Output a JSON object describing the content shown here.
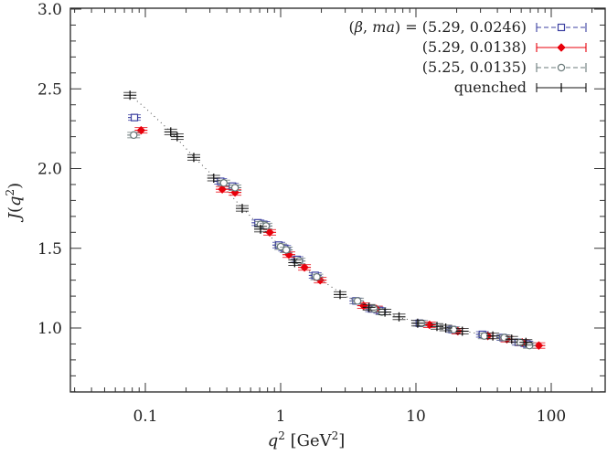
{
  "chart_data": {
    "type": "scatter",
    "title": "",
    "xlabel": "q^2 [GeV^2]",
    "ylabel": "J(q^2)",
    "xscale": "log",
    "xlim": [
      0.028,
      250
    ],
    "ylim": [
      0.6,
      3.0
    ],
    "xticks": [
      {
        "value": 0.1,
        "label": "0.1"
      },
      {
        "value": 1,
        "label": "1"
      },
      {
        "value": 10,
        "label": "10"
      },
      {
        "value": 100,
        "label": "100"
      }
    ],
    "yticks": [
      {
        "value": 1.0,
        "label": "1.0"
      },
      {
        "value": 1.5,
        "label": "1.5"
      },
      {
        "value": 2.0,
        "label": "2.0"
      },
      {
        "value": 2.5,
        "label": "2.5"
      },
      {
        "value": 3.0,
        "label": "3.0"
      }
    ],
    "grid": false,
    "legend_position": "upper right",
    "legend_title": "(β, ma) =",
    "series": [
      {
        "name": "(5.29, 0.0246)",
        "legend_label": "(β, ma) = (5.29, 0.0246)",
        "color": "#3b3fa0",
        "marker": "open-square",
        "line": "dashed",
        "points": [
          [
            0.083,
            2.32
          ],
          [
            0.36,
            1.92
          ],
          [
            0.44,
            1.89
          ],
          [
            0.68,
            1.66
          ],
          [
            0.75,
            1.65
          ],
          [
            0.97,
            1.52
          ],
          [
            1.07,
            1.5
          ],
          [
            1.32,
            1.43
          ],
          [
            1.8,
            1.33
          ],
          [
            3.6,
            1.17
          ],
          [
            4.7,
            1.12
          ],
          [
            5.4,
            1.11
          ],
          [
            10.6,
            1.03
          ],
          [
            18.5,
            0.99
          ],
          [
            31,
            0.96
          ],
          [
            44,
            0.94
          ],
          [
            57,
            0.91
          ],
          [
            66,
            0.9
          ]
        ]
      },
      {
        "name": "(5.29, 0.0138)",
        "legend_label": "(5.29, 0.0138)",
        "color": "#e8000b",
        "marker": "filled-diamond",
        "line": "solid",
        "points": [
          [
            0.093,
            2.24
          ],
          [
            0.37,
            1.87
          ],
          [
            0.46,
            1.85
          ],
          [
            0.83,
            1.6
          ],
          [
            1.15,
            1.46
          ],
          [
            1.5,
            1.38
          ],
          [
            1.96,
            1.3
          ],
          [
            4.1,
            1.14
          ],
          [
            5.1,
            1.12
          ],
          [
            12.6,
            1.02
          ],
          [
            20.4,
            0.98
          ],
          [
            34,
            0.95
          ],
          [
            47,
            0.93
          ],
          [
            61,
            0.91
          ],
          [
            81,
            0.89
          ]
        ]
      },
      {
        "name": "(5.25, 0.0135)",
        "legend_label": "(5.25, 0.0135)",
        "color": "#6a7a7a",
        "marker": "open-circle",
        "line": "dashed",
        "points": [
          [
            0.082,
            2.21
          ],
          [
            0.38,
            1.91
          ],
          [
            0.46,
            1.88
          ],
          [
            0.71,
            1.65
          ],
          [
            0.78,
            1.64
          ],
          [
            1.0,
            1.51
          ],
          [
            1.1,
            1.49
          ],
          [
            1.37,
            1.42
          ],
          [
            1.85,
            1.32
          ],
          [
            3.7,
            1.17
          ],
          [
            4.9,
            1.12
          ],
          [
            5.6,
            1.1
          ],
          [
            11.0,
            1.03
          ],
          [
            19,
            0.99
          ],
          [
            32,
            0.95
          ],
          [
            45,
            0.94
          ],
          [
            59,
            0.91
          ],
          [
            69,
            0.89
          ]
        ]
      },
      {
        "name": "quenched",
        "legend_label": "quenched",
        "color": "#111111",
        "marker": "plus",
        "line": "solid",
        "points": [
          [
            0.077,
            2.46
          ],
          [
            0.154,
            2.23
          ],
          [
            0.172,
            2.2
          ],
          [
            0.228,
            2.07
          ],
          [
            0.32,
            1.94
          ],
          [
            0.52,
            1.75
          ],
          [
            0.71,
            1.62
          ],
          [
            1.27,
            1.41
          ],
          [
            2.75,
            1.21
          ],
          [
            4.5,
            1.13
          ],
          [
            5.9,
            1.1
          ],
          [
            7.5,
            1.07
          ],
          [
            10.3,
            1.03
          ],
          [
            14.3,
            1.01
          ],
          [
            16.6,
            1.0
          ],
          [
            22,
            0.98
          ],
          [
            37,
            0.95
          ],
          [
            51,
            0.93
          ],
          [
            65,
            0.91
          ]
        ]
      }
    ],
    "annotations": [
      {
        "type": "dotted-fit-curve",
        "color": "#444444",
        "description": "dotted guide curve through quenched data"
      }
    ],
    "fit_curve": [
      [
        0.077,
        2.46
      ],
      [
        0.1,
        2.38
      ],
      [
        0.15,
        2.24
      ],
      [
        0.23,
        2.07
      ],
      [
        0.32,
        1.95
      ],
      [
        0.5,
        1.77
      ],
      [
        0.7,
        1.64
      ],
      [
        1.0,
        1.51
      ],
      [
        1.5,
        1.38
      ],
      [
        2.0,
        1.3
      ],
      [
        3.0,
        1.2
      ],
      [
        5.0,
        1.12
      ],
      [
        8.0,
        1.06
      ],
      [
        12,
        1.03
      ],
      [
        20,
        0.99
      ],
      [
        35,
        0.95
      ],
      [
        55,
        0.92
      ],
      [
        80,
        0.9
      ]
    ]
  }
}
